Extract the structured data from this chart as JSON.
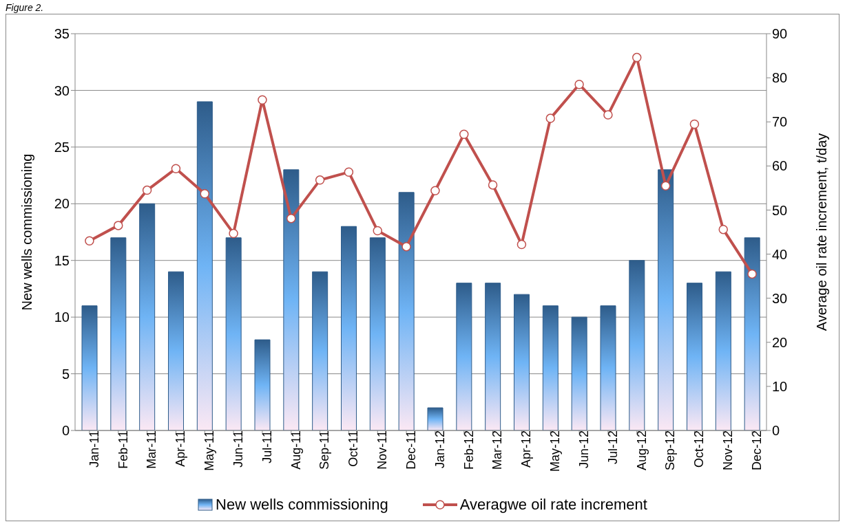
{
  "chart_data": {
    "type": "bar",
    "title": "Figure 2.",
    "categories": [
      "Jan-11",
      "Feb-11",
      "Mar-11",
      "Apr-11",
      "May-11",
      "Jun-11",
      "Jul-11",
      "Aug-11",
      "Sep-11",
      "Oct-11",
      "Nov-11",
      "Dec-11",
      "Jan-12",
      "Feb-12",
      "Mar-12",
      "Apr-12",
      "May-12",
      "Jun-12",
      "Jul-12",
      "Aug-12",
      "Sep-12",
      "Oct-12",
      "Nov-12",
      "Dec-12"
    ],
    "series": [
      {
        "name": "New wells commissioning",
        "color": "#2e5c8a",
        "values": [
          11,
          17,
          20,
          14,
          29,
          17,
          8,
          23,
          14,
          18,
          17,
          21,
          2,
          13,
          13,
          12,
          11,
          10,
          11,
          15,
          23,
          13,
          14,
          17
        ]
      },
      {
        "name": "Averagwe oil rate increment",
        "type": "line",
        "axis": "y2",
        "color": "#c0504d",
        "marker": "circle",
        "values": [
          43,
          46.5,
          54.5,
          59.4,
          53.7,
          44.7,
          75,
          48.1,
          56.8,
          58.6,
          45.3,
          41.7,
          54.4,
          67.2,
          55.7,
          42.2,
          70.8,
          78.5,
          71.6,
          84.6,
          55.5,
          69.5,
          45.6,
          35.5
        ]
      }
    ],
    "ylabel": "New wells commissioning",
    "y2label": "Average oil rate increment, t/day",
    "ylim": [
      0,
      35
    ],
    "yticks": [
      0,
      5,
      10,
      15,
      20,
      25,
      30,
      35
    ],
    "y2lim": [
      0,
      90
    ],
    "y2ticks": [
      0,
      10,
      20,
      30,
      40,
      50,
      60,
      70,
      80,
      90
    ],
    "grid": "y",
    "legend": "bottom"
  }
}
